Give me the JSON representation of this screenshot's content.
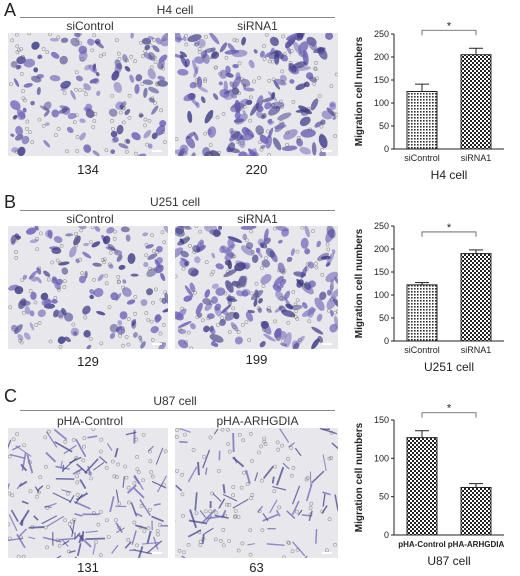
{
  "panels": [
    {
      "letter": "A",
      "group_title": "H4 cell",
      "conditions": [
        "siControl",
        "siRNA1"
      ],
      "counts": [
        "134",
        "220"
      ],
      "image_style": "light",
      "chart_data": {
        "type": "bar",
        "categories": [
          "siControl",
          "siRNA1"
        ],
        "values": [
          125,
          205
        ],
        "errors": [
          16,
          14
        ],
        "patterns": [
          "dots",
          "checker"
        ],
        "xlabel": "H4 cell",
        "ylabel": "Migration cell numbers",
        "ylim": [
          0,
          250
        ],
        "yticks": [
          0,
          50,
          100,
          150,
          200,
          250
        ],
        "significance": "*",
        "bold_xticks": false
      }
    },
    {
      "letter": "B",
      "group_title": "U251 cell",
      "conditions": [
        "siControl",
        "siRNA1"
      ],
      "counts": [
        "129",
        "199"
      ],
      "image_style": "light",
      "chart_data": {
        "type": "bar",
        "categories": [
          "siControl",
          "siRNA1"
        ],
        "values": [
          122,
          190
        ],
        "errors": [
          5,
          8
        ],
        "patterns": [
          "dots",
          "checker"
        ],
        "xlabel": "U251 cell",
        "ylabel": "Migration cell numbers",
        "ylim": [
          0,
          250
        ],
        "yticks": [
          0,
          50,
          100,
          150,
          200,
          250
        ],
        "significance": "*",
        "bold_xticks": false
      }
    },
    {
      "letter": "C",
      "group_title": "U87 cell",
      "conditions": [
        "pHA-Control",
        "pHA-ARHGDIA"
      ],
      "counts": [
        "131",
        "63"
      ],
      "image_style": "sparse",
      "chart_data": {
        "type": "bar",
        "categories": [
          "pHA-Control",
          "pHA-ARHGDIA"
        ],
        "values": [
          127,
          62
        ],
        "errors": [
          9,
          5
        ],
        "patterns": [
          "checker",
          "checker"
        ],
        "xlabel": "U87 cell",
        "ylabel": "Migration cell numbers",
        "ylim": [
          0,
          150
        ],
        "yticks": [
          0,
          50,
          100,
          150
        ],
        "significance": "*",
        "bold_xticks": true
      }
    }
  ],
  "colors": {
    "stain": "#6b5fb5",
    "stain_dark": "#3e3a86",
    "background_light": "#e7e7ec",
    "axis": "#222222"
  }
}
